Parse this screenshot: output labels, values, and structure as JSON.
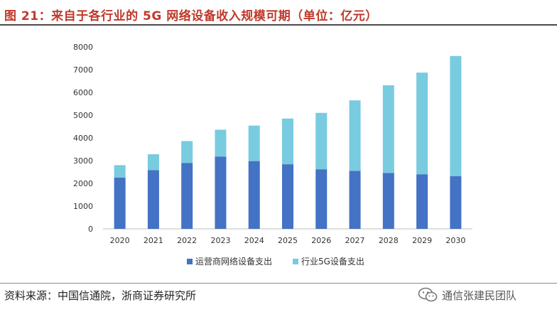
{
  "figure": {
    "title": "图 21：来自于各行业的 5G 网络设备收入规模可期（单位：亿元）",
    "source": "资料来源：中国信通院，浙商证券研究所",
    "watermark": "通信张建民团队",
    "watermark_icon": "wechat-icon"
  },
  "colors": {
    "title": "#c0392b",
    "operator": "#4472c4",
    "industry": "#79cbe0",
    "rule": "#4a4a4a"
  },
  "chart_data": {
    "type": "bar",
    "stacked": true,
    "title": "",
    "xlabel": "",
    "ylabel": "",
    "ylim": [
      0,
      8000
    ],
    "yticks": [
      0,
      1000,
      2000,
      3000,
      4000,
      5000,
      6000,
      7000,
      8000
    ],
    "yticks_labels": [
      "0",
      "1000",
      "2000",
      "3000",
      "4000",
      "5000",
      "6000",
      "7000",
      "8000"
    ],
    "grid": false,
    "legend_position": "bottom",
    "categories": [
      "2020",
      "2021",
      "2022",
      "2023",
      "2024",
      "2025",
      "2026",
      "2027",
      "2028",
      "2029",
      "2030"
    ],
    "series": [
      {
        "name": "运营商网络设备支出",
        "values": [
          2250,
          2580,
          2900,
          3180,
          2980,
          2840,
          2620,
          2550,
          2460,
          2400,
          2320
        ]
      },
      {
        "name": "行业5G设备支出",
        "values": [
          550,
          700,
          960,
          1180,
          1560,
          2010,
          2480,
          3100,
          3850,
          4470,
          5280
        ]
      }
    ]
  }
}
